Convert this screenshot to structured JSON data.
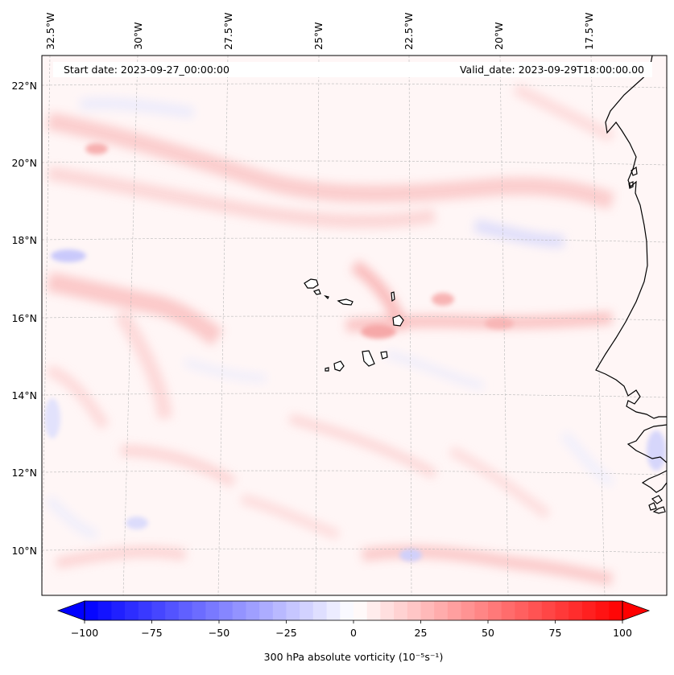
{
  "map": {
    "start_date_label": "Start date: 2023-09-27_00:00:00",
    "valid_date_label": "Valid_date: 2023-09-29T18:00:00.00",
    "lon_labels": [
      "32.5°W",
      "30°W",
      "27.5°W",
      "25°W",
      "22.5°W",
      "20°W",
      "17.5°W"
    ],
    "lat_labels": [
      "22°N",
      "20°N",
      "18°N",
      "16°N",
      "14°N",
      "12°N",
      "10°N"
    ],
    "variable": "300 hPa absolute vorticity",
    "units": "(10⁻⁵s⁻¹)"
  },
  "colorbar": {
    "ticks": [
      "−100",
      "−75",
      "−50",
      "−25",
      "0",
      "25",
      "50",
      "75",
      "100"
    ],
    "label": "300 hPa absolute vorticity (10⁻⁵s⁻¹)",
    "min": -100,
    "max": 100,
    "low_color": "#0000ff",
    "mid_color": "#ffffff",
    "high_color": "#ff0000"
  },
  "colors": {
    "coast": "#000000",
    "grid": "#b0b0b0",
    "weak_positive": "#fde3e3",
    "weak_negative": "#e8e8fc"
  }
}
